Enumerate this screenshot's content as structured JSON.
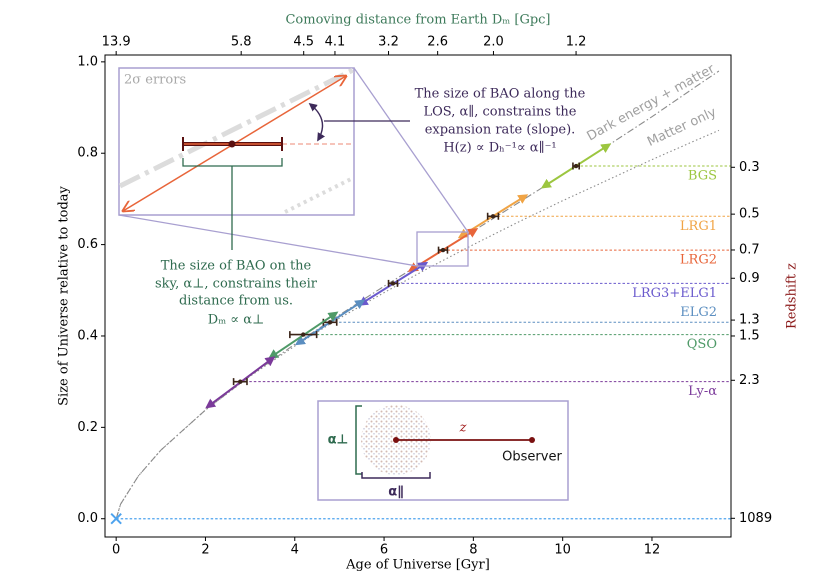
{
  "chart_data": {
    "type": "scatter",
    "xlabel": "Age of Universe [Gyr]",
    "ylabel": "Size of Universe relative to today",
    "x2label": "Comoving distance from Earth Dₘ [Gpc]",
    "y2label": "Redshift z",
    "xlim": [
      -0.25,
      13.77
    ],
    "ylim": [
      -0.04,
      1.015
    ],
    "xticks": [
      0,
      2,
      4,
      6,
      8,
      10,
      12
    ],
    "yticks": [
      {
        "value": 0,
        "label": "0.0"
      },
      {
        "value": 0.2,
        "label": "0.2"
      },
      {
        "value": 0.4,
        "label": "0.4"
      },
      {
        "value": 0.6,
        "label": "0.6"
      },
      {
        "value": 0.8,
        "label": "0.8"
      },
      {
        "value": 1,
        "label": "1.0"
      }
    ],
    "x2ticks": [
      13.9,
      5.8,
      4.5,
      4.1,
      3.2,
      2.6,
      {
        "value": 2,
        "label": "2.0"
      },
      1.2
    ],
    "x2tick_ages": [
      0,
      2.8,
      4.2,
      4.9,
      6.1,
      7.2,
      8.45,
      10.3
    ],
    "y2ticks": [
      0.3,
      0.5,
      0.7,
      0.9,
      1.3,
      1.5,
      2.3,
      1089
    ],
    "series": [
      {
        "name": "Dark energy + matter",
        "color": "#8c8c8c",
        "style": "dashdot",
        "x": [
          0,
          0.1,
          0.5,
          1,
          2,
          3,
          4,
          5,
          6,
          7,
          8,
          9,
          10,
          11,
          12,
          13,
          13.5
        ],
        "values": [
          0,
          0.032,
          0.094,
          0.15,
          0.238,
          0.313,
          0.382,
          0.446,
          0.509,
          0.569,
          0.63,
          0.691,
          0.753,
          0.816,
          0.88,
          0.947,
          0.98
        ]
      },
      {
        "name": "Matter only",
        "color": "#8c8c8c",
        "style": "dotted",
        "x": [
          0,
          0.1,
          0.5,
          1,
          2,
          3,
          4,
          5,
          6,
          7,
          8,
          9,
          10,
          11,
          12,
          13,
          13.5
        ],
        "values": [
          0,
          0.032,
          0.094,
          0.15,
          0.238,
          0.312,
          0.378,
          0.439,
          0.495,
          0.549,
          0.6,
          0.649,
          0.696,
          0.741,
          0.786,
          0.829,
          0.85
        ]
      }
    ],
    "errorbar_color": "#3a2418",
    "tracers": [
      {
        "name": "BGS",
        "color": "#9cc63f",
        "age": 10.3,
        "size": 0.772,
        "age_err": 0.07
      },
      {
        "name": "LRG1",
        "color": "#f0a445",
        "age": 8.44,
        "size": 0.662,
        "age_err": 0.12
      },
      {
        "name": "LRG2",
        "color": "#e8653a",
        "age": 7.32,
        "size": 0.588,
        "age_err": 0.1
      },
      {
        "name": "LRG3+ELG1",
        "color": "#6a5acd",
        "age": 6.2,
        "size": 0.515,
        "age_err": 0.1
      },
      {
        "name": "ELG2",
        "color": "#5b8ec0",
        "age": 4.79,
        "size": 0.43,
        "age_err": 0.15,
        "label_position": "above"
      },
      {
        "name": "QSO",
        "color": "#4f9a68",
        "age": 4.19,
        "size": 0.403,
        "age_err": 0.3
      },
      {
        "name": "Ly-α",
        "color": "#7b3a9a",
        "age": 2.78,
        "size": 0.3,
        "age_err": 0.15
      }
    ],
    "cmb": {
      "age": 0,
      "size": 0,
      "color": "#4da3ee"
    },
    "inset": {
      "title": "2σ errors"
    },
    "annotations": {
      "los": [
        "The size of BAO along the",
        "LOS, α∥, constrains the",
        "expansion rate (slope).",
        "H(z) ∝ Dₕ⁻¹∝ α∥⁻¹"
      ],
      "sky": [
        "The size of BAO on the",
        "sky, α⊥, constrains their",
        "distance from us.",
        "Dₘ ∝ α⊥"
      ]
    },
    "diagram": {
      "alpha_perp": "α⊥",
      "alpha_par": "α∥",
      "z": "z",
      "observer": "Observer"
    }
  }
}
